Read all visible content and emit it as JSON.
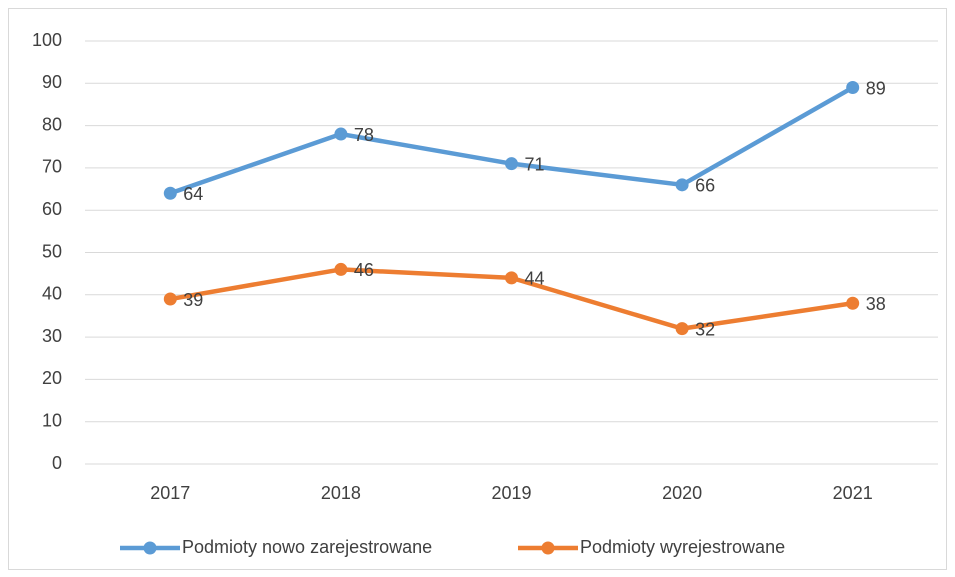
{
  "chart_data": {
    "type": "line",
    "categories": [
      "2017",
      "2018",
      "2019",
      "2020",
      "2021"
    ],
    "series": [
      {
        "name": "Podmioty nowo zarejestrowane",
        "color": "#5b9bd5",
        "values": [
          64,
          78,
          71,
          66,
          89
        ]
      },
      {
        "name": "Podmioty wyrejestrowane",
        "color": "#ed7d31",
        "values": [
          39,
          46,
          44,
          32,
          38
        ]
      }
    ],
    "ylim": [
      0,
      100
    ],
    "yticks": [
      0,
      10,
      20,
      30,
      40,
      50,
      60,
      70,
      80,
      90,
      100
    ],
    "grid": true,
    "legend": "bottom",
    "data_labels": true
  }
}
